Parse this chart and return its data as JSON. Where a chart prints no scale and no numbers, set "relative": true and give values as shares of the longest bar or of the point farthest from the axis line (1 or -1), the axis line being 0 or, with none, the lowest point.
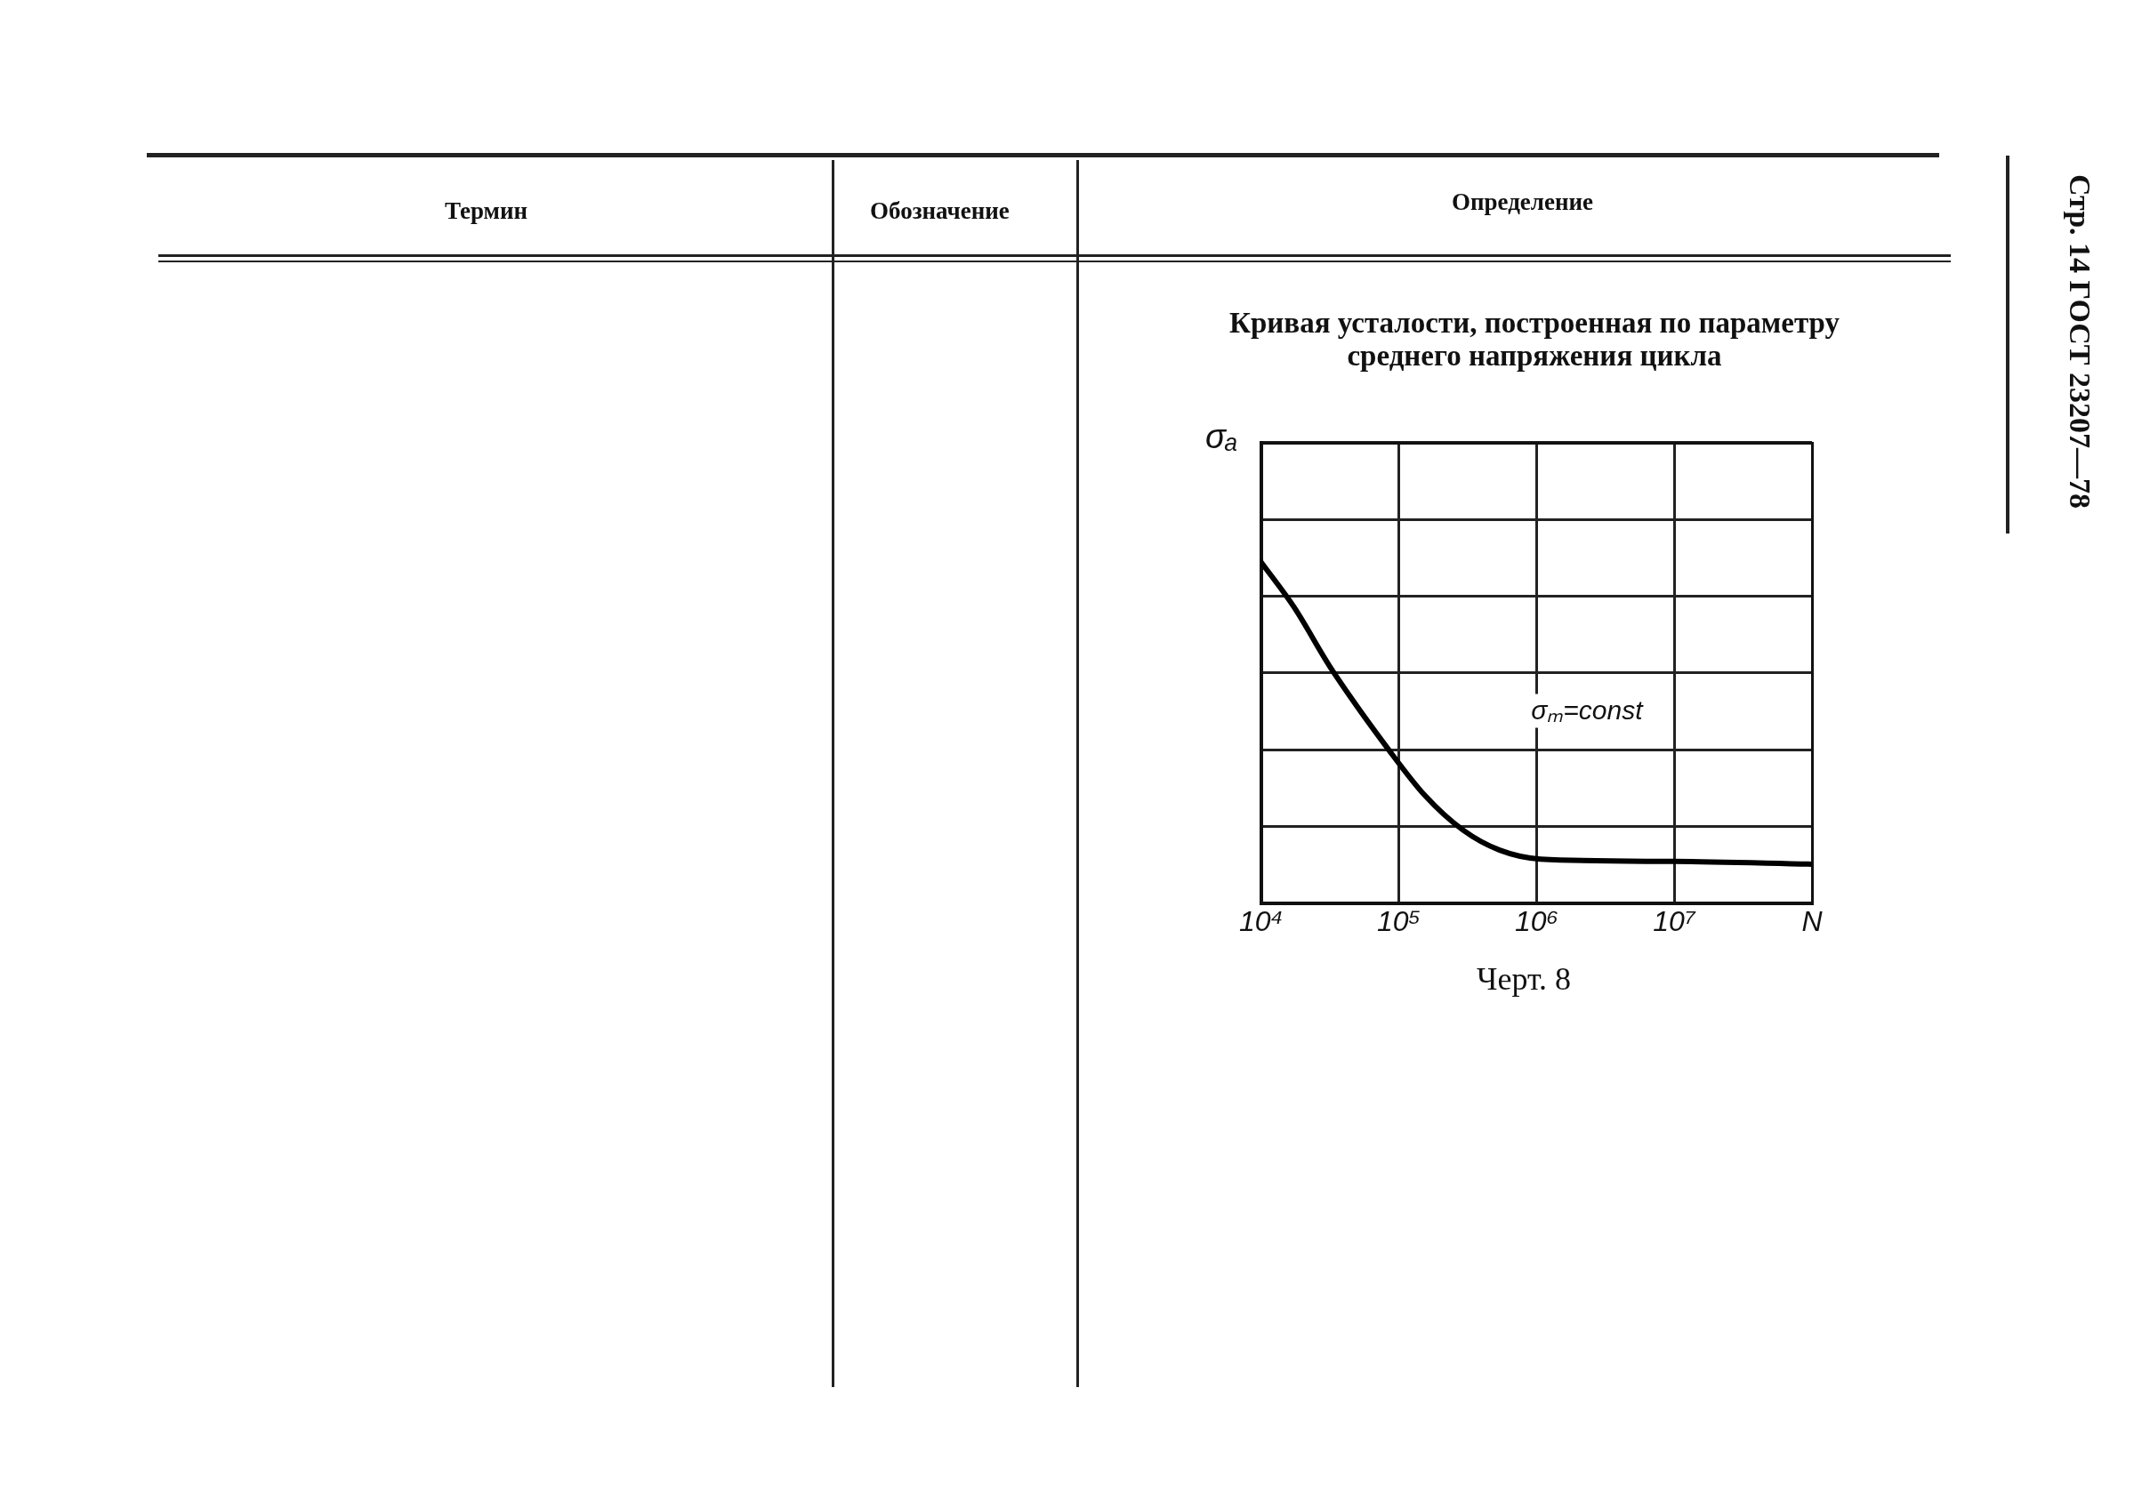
{
  "chart_data": {
    "type": "line",
    "title": "Кривая усталости, построенная по параметру среднего напряжения цикла",
    "ylabel": "σₐ",
    "log": "x",
    "relative": true,
    "grid": true,
    "xlim": [
      10000,
      100000000
    ],
    "xticks": [
      {
        "value": 10000,
        "label": "10⁴"
      },
      {
        "value": 100000,
        "label": "10⁵"
      },
      {
        "value": 1000000,
        "label": "10⁶"
      },
      {
        "value": 10000000,
        "label": "10⁷"
      },
      {
        "value": 100000000,
        "label": "N"
      }
    ],
    "series": [
      {
        "name": "σₘ=const",
        "color": "#000000",
        "x": [
          10000,
          17400,
          32000,
          85000,
          155000,
          290000,
          540000,
          1070000,
          10000000,
          100000000
        ],
        "values": [
          1,
          0.867,
          0.69,
          0.448,
          0.315,
          0.215,
          0.155,
          0.129,
          0.122,
          0.114
        ]
      }
    ],
    "annotations": [
      "Черт. 8",
      "Термин",
      "Обозначение",
      "Определение",
      "Стр. 14 ГОСТ 23207—78"
    ]
  }
}
